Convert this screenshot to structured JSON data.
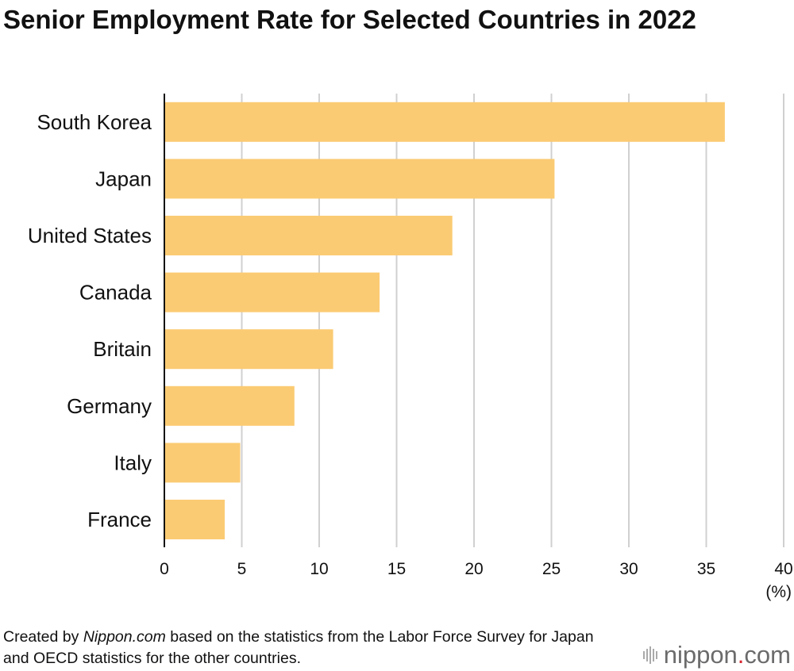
{
  "title": "Senior Employment Rate for Selected Countries in 2022",
  "source": {
    "prefix": "Created by ",
    "site": "Nippon.com",
    "suffix": " based on the statistics from the Labor Force Survey for Japan and OECD statistics for the other countries."
  },
  "logo": {
    "word": "nippon",
    "dot": ".",
    "tld": "com"
  },
  "colors": {
    "bar": "#fbcb73",
    "grid": "#d0d0d0",
    "axis": "#111111",
    "text": "#111111",
    "logo_dot": "#d7262f"
  },
  "chart_data": {
    "type": "bar",
    "orientation": "horizontal",
    "title": "Senior Employment Rate for Selected Countries in 2022",
    "categories": [
      "South Korea",
      "Japan",
      "United States",
      "Canada",
      "Britain",
      "Germany",
      "Italy",
      "France"
    ],
    "values": [
      36.2,
      25.2,
      18.6,
      13.9,
      10.9,
      8.4,
      4.9,
      3.9
    ],
    "xlim": [
      0,
      40
    ],
    "xticks": [
      0,
      5,
      10,
      15,
      20,
      25,
      30,
      35,
      40
    ],
    "xunit": "(%)",
    "grid": true
  }
}
